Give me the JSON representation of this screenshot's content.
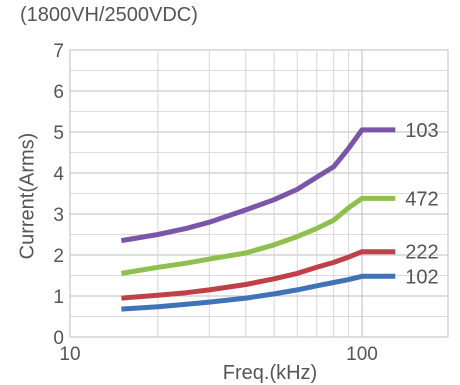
{
  "chart_data": {
    "type": "line",
    "title": "(1800VH/2500VDC)",
    "xlabel": "Freq.(kHz)",
    "ylabel": "Current(Arms)",
    "xscale": "log",
    "xlim": [
      10,
      300
    ],
    "ylim": [
      0,
      7
    ],
    "xticks": [
      "10",
      "100"
    ],
    "yticks": [
      "0",
      "1",
      "2",
      "3",
      "4",
      "5",
      "6",
      "7"
    ],
    "grid": true,
    "legend": "series labels at right end of lines",
    "series": [
      {
        "name": "103",
        "color": "#7a55a8",
        "x": [
          15,
          20,
          25,
          30,
          40,
          50,
          60,
          70,
          80,
          90,
          100,
          130
        ],
        "y": [
          2.35,
          2.5,
          2.65,
          2.8,
          3.1,
          3.35,
          3.6,
          3.9,
          4.15,
          4.6,
          5.05,
          5.05
        ]
      },
      {
        "name": "472",
        "color": "#8fbf4e",
        "x": [
          15,
          20,
          25,
          30,
          40,
          50,
          60,
          70,
          80,
          90,
          100,
          130
        ],
        "y": [
          1.55,
          1.7,
          1.8,
          1.9,
          2.05,
          2.25,
          2.45,
          2.65,
          2.85,
          3.15,
          3.38,
          3.38
        ]
      },
      {
        "name": "222",
        "color": "#c0404a",
        "x": [
          15,
          20,
          25,
          30,
          40,
          50,
          60,
          70,
          80,
          90,
          100,
          130
        ],
        "y": [
          0.95,
          1.02,
          1.08,
          1.15,
          1.28,
          1.42,
          1.55,
          1.7,
          1.82,
          1.95,
          2.08,
          2.08
        ]
      },
      {
        "name": "102",
        "color": "#3f73b8",
        "x": [
          15,
          20,
          25,
          30,
          40,
          50,
          60,
          70,
          80,
          90,
          100,
          130
        ],
        "y": [
          0.68,
          0.74,
          0.8,
          0.85,
          0.95,
          1.05,
          1.15,
          1.25,
          1.33,
          1.4,
          1.48,
          1.48
        ]
      }
    ]
  }
}
